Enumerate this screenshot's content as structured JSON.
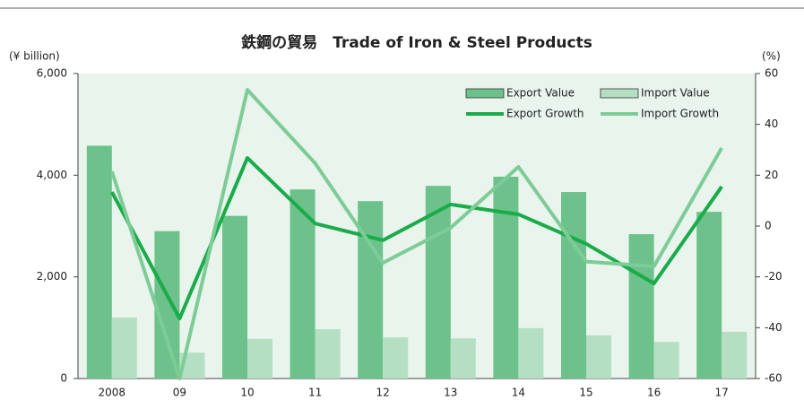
{
  "chart_data": {
    "type": "bar-line",
    "title": "鉄鋼の貿易　Trade of  Iron & Steel Products",
    "y_label": "(¥ billion)",
    "y2_label": "(%)",
    "categories": [
      "2008",
      "09",
      "10",
      "11",
      "12",
      "13",
      "14",
      "15",
      "16",
      "17"
    ],
    "series": [
      {
        "name": "Export Value",
        "type": "bar",
        "color": "#6cc28a",
        "values": [
          4580,
          2900,
          3200,
          3720,
          3490,
          3790,
          3970,
          3670,
          2840,
          3280
        ]
      },
      {
        "name": "Import Value",
        "type": "bar",
        "color": "#b5dfc3",
        "values": [
          1200,
          510,
          780,
          970,
          810,
          790,
          990,
          850,
          720,
          920
        ]
      },
      {
        "name": "Export Growth",
        "type": "line",
        "axis": "y2",
        "color": "#1aab4a",
        "values": [
          13.4,
          -36.4,
          26.8,
          1,
          -5.6,
          8.5,
          4.6,
          -7,
          -22.6,
          15.5
        ]
      },
      {
        "name": "Import Growth",
        "type": "line",
        "axis": "y2",
        "color": "#7dcc97",
        "values": [
          21.5,
          -60,
          53.6,
          24.7,
          -14.5,
          -0.7,
          23.3,
          -14,
          -15.9,
          30.7
        ]
      }
    ],
    "ylim": [
      0,
      6000
    ],
    "yticks": [
      0,
      {
        "value": 2000,
        "label": "2,000"
      },
      {
        "value": 4000,
        "label": "4,000"
      },
      {
        "value": 6000,
        "label": "6,000"
      }
    ],
    "y2lim": [
      -60,
      60
    ],
    "y2ticks": [
      -60,
      -40,
      -20,
      0,
      20,
      40,
      60
    ],
    "legend": "upper right"
  }
}
